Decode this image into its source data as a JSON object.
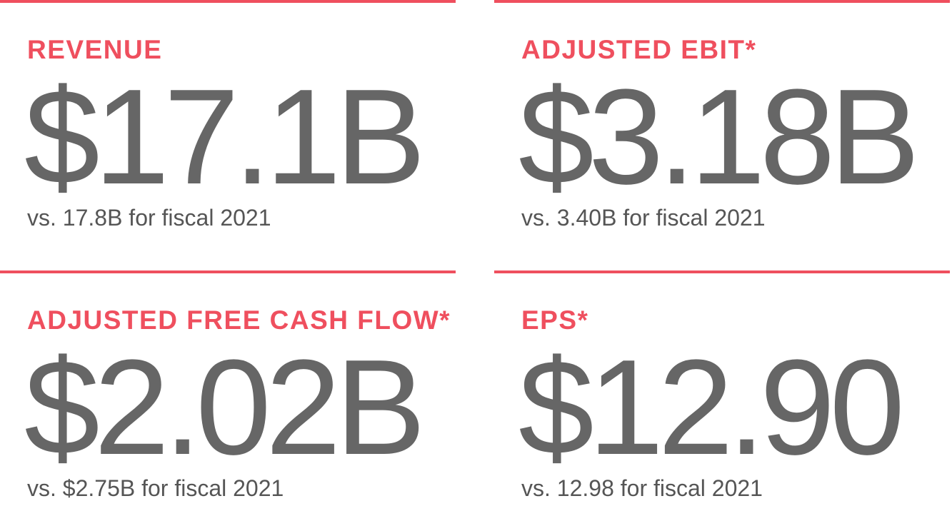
{
  "cards": [
    {
      "label": "REVENUE",
      "value": "$17.1B",
      "comparison": "vs. 17.8B for fiscal 2021"
    },
    {
      "label": "ADJUSTED EBIT*",
      "value": "$3.18B",
      "comparison": "vs. 3.40B for fiscal 2021"
    },
    {
      "label": "ADJUSTED FREE CASH FLOW*",
      "value": "$2.02B",
      "comparison": "vs. $2.75B for fiscal 2021"
    },
    {
      "label": "EPS*",
      "value": "$12.90",
      "comparison": "vs. 12.98 for fiscal 2021"
    }
  ]
}
